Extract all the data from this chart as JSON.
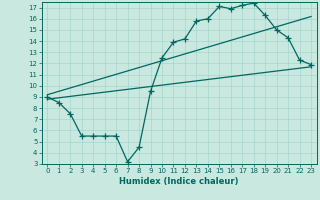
{
  "xlabel": "Humidex (Indice chaleur)",
  "ylabel": "",
  "bg_color": "#c8e8e0",
  "grid_color": "#a8d4cc",
  "line_color": "#006860",
  "xlim": [
    -0.5,
    23.5
  ],
  "ylim": [
    3,
    17.5
  ],
  "xticks": [
    0,
    1,
    2,
    3,
    4,
    5,
    6,
    7,
    8,
    9,
    10,
    11,
    12,
    13,
    14,
    15,
    16,
    17,
    18,
    19,
    20,
    21,
    22,
    23
  ],
  "yticks": [
    3,
    4,
    5,
    6,
    7,
    8,
    9,
    10,
    11,
    12,
    13,
    14,
    15,
    16,
    17
  ],
  "line1_x": [
    0,
    1,
    2,
    3,
    4,
    5,
    6,
    7,
    8,
    9,
    10,
    11,
    12,
    13,
    14,
    15,
    16,
    17,
    18,
    19,
    20,
    21,
    22,
    23
  ],
  "line1_y": [
    9.0,
    8.5,
    7.5,
    5.5,
    5.5,
    5.5,
    5.5,
    3.2,
    4.5,
    9.5,
    12.5,
    13.9,
    14.2,
    15.8,
    16.0,
    17.1,
    16.9,
    17.2,
    17.4,
    16.3,
    15.0,
    14.3,
    12.3,
    11.9
  ],
  "line2_x": [
    0,
    23
  ],
  "line2_y": [
    9.2,
    16.2
  ],
  "line3_x": [
    0,
    23
  ],
  "line3_y": [
    8.8,
    11.7
  ],
  "marker": "+",
  "markersize": 4,
  "markeredgewidth": 0.9,
  "linewidth": 0.9,
  "tick_fontsize": 5,
  "xlabel_fontsize": 6
}
